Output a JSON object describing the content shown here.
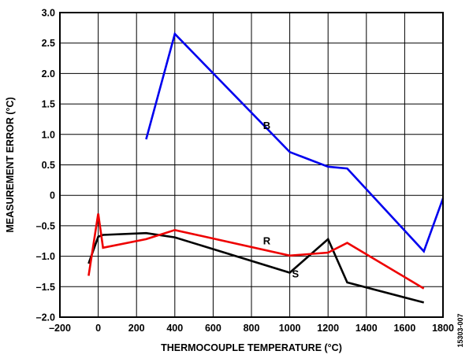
{
  "chart_data": {
    "type": "line",
    "title": "",
    "xlabel": "THERMOCOUPLE TEMPERATURE (°C)",
    "ylabel": "MEASUREMENT ERROR (°C)",
    "xlim": [
      -200,
      1800
    ],
    "ylim": [
      -2.0,
      3.0
    ],
    "x_ticks": [
      -200,
      0,
      200,
      400,
      600,
      800,
      1000,
      1200,
      1400,
      1600,
      1800
    ],
    "x_tick_labels": [
      "–200",
      "0",
      "200",
      "400",
      "600",
      "800",
      "1000",
      "1200",
      "1400",
      "1600",
      "1800"
    ],
    "y_ticks": [
      -2.0,
      -1.5,
      -1.0,
      -0.5,
      0,
      0.5,
      1.0,
      1.5,
      2.0,
      2.5,
      3.0
    ],
    "y_tick_labels": [
      "–2.0",
      "–1.5",
      "–1.0",
      "–0.5",
      "0",
      "0.5",
      "1.0",
      "1.5",
      "2.0",
      "2.5",
      "3.0"
    ],
    "grid": true,
    "legend": "none",
    "series": [
      {
        "name": "B",
        "color": "#0000ee",
        "x": [
          250,
          400,
          1000,
          1200,
          1300,
          1700,
          1800
        ],
        "y": [
          0.92,
          2.65,
          0.71,
          0.47,
          0.44,
          -0.92,
          -0.05
        ]
      },
      {
        "name": "R",
        "color": "#ee0000",
        "x": [
          -50,
          0,
          25,
          250,
          400,
          1000,
          1200,
          1300,
          1700
        ],
        "y": [
          -1.32,
          -0.3,
          -0.86,
          -0.72,
          -0.57,
          -0.99,
          -0.94,
          -0.78,
          -1.53
        ]
      },
      {
        "name": "S",
        "color": "#000000",
        "x": [
          -50,
          0,
          25,
          250,
          400,
          1000,
          1200,
          1300,
          1700
        ],
        "y": [
          -1.12,
          -0.68,
          -0.65,
          -0.62,
          -0.69,
          -1.27,
          -0.72,
          -1.43,
          -1.76
        ]
      }
    ],
    "annotations": [
      {
        "text": "B",
        "series": "B",
        "x": 880,
        "y": 1.15
      },
      {
        "text": "R",
        "series": "R",
        "x": 880,
        "y": -0.74
      },
      {
        "text": "S",
        "series": "S",
        "x": 1030,
        "y": -1.28
      }
    ],
    "figure_id": "15303-007"
  }
}
